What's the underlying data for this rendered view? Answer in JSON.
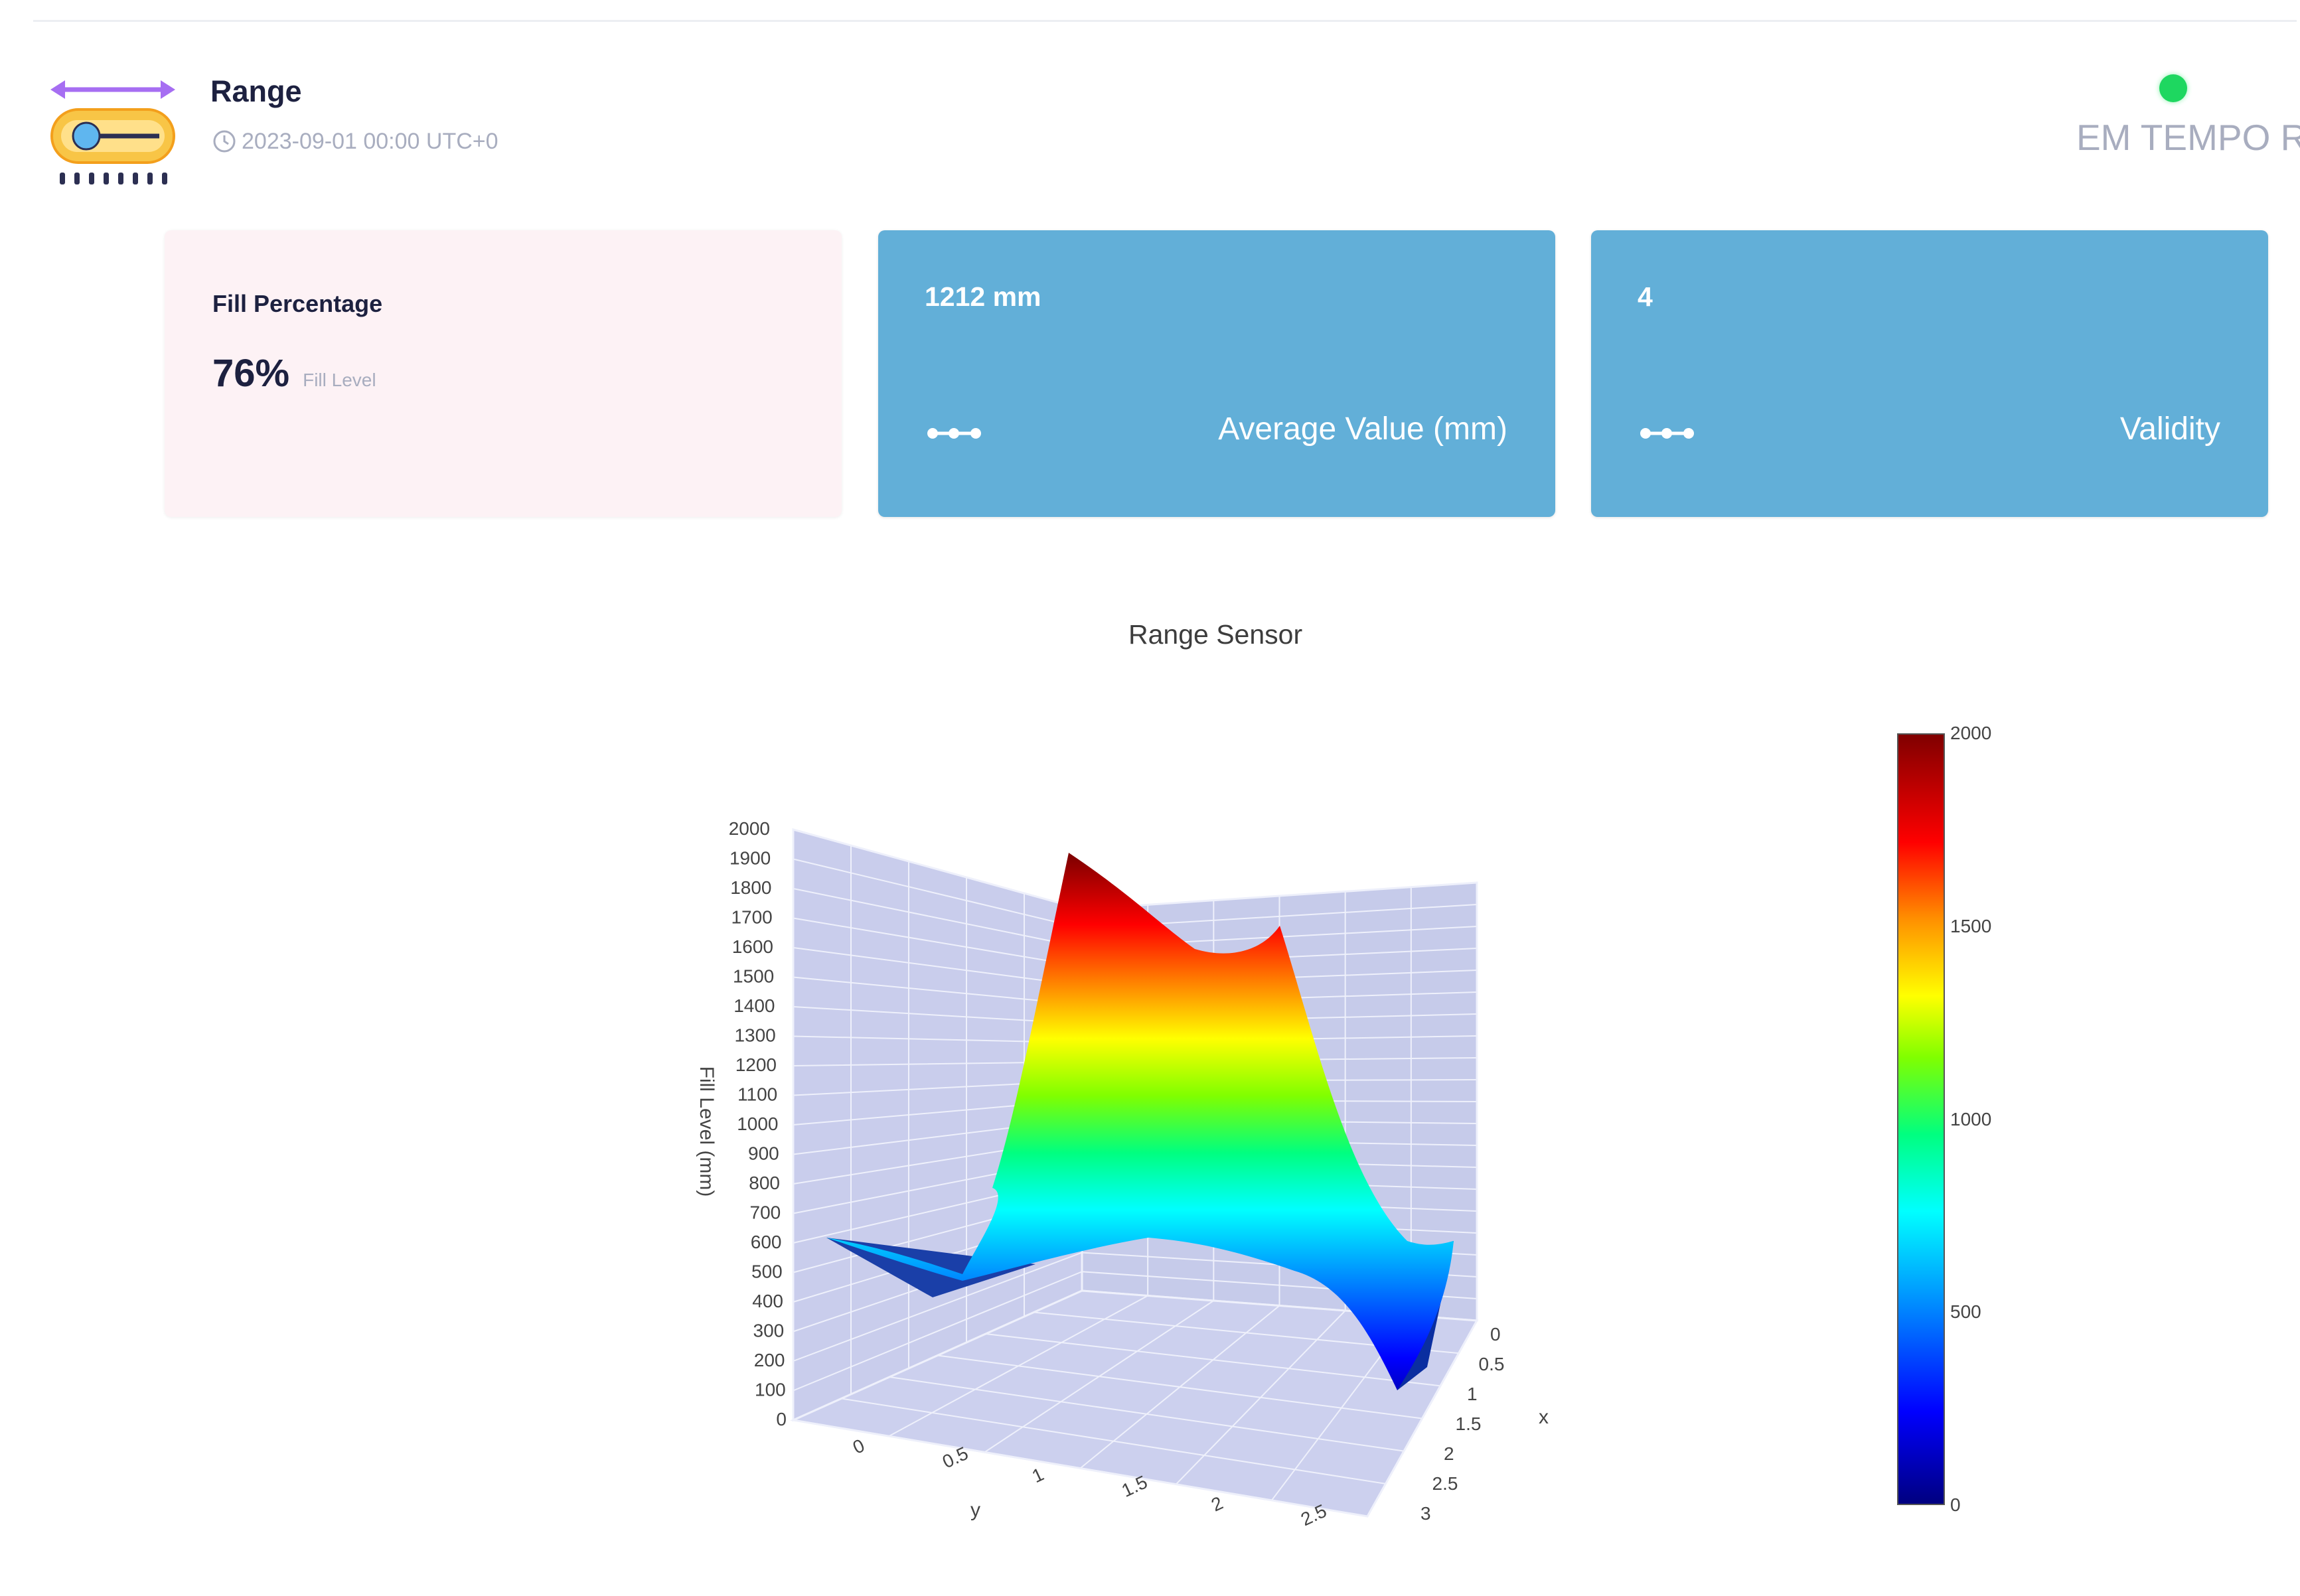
{
  "header": {
    "title": "Range",
    "timestamp": "2023-09-01 00:00 UTC+0",
    "status_text": "EM TEMPO R",
    "status_color": "#1ed760"
  },
  "cards": {
    "fill": {
      "heading": "Fill Percentage",
      "value": "76%",
      "unit": "Fill Level"
    },
    "average": {
      "value": "1212 mm",
      "label": "Average Value (mm)",
      "icon": "sensor-dots-icon"
    },
    "validity": {
      "value": "4",
      "label": "Validity",
      "icon": "sensor-dots-icon"
    }
  },
  "colors": {
    "card_blue": "#62afd8",
    "card_pink": "#fdf2f5",
    "plot_pane": "#c9cdec"
  },
  "chart_data": {
    "type": "surface3d",
    "title": "Range Sensor",
    "zlabel": "Fill Level (mm)",
    "xlabel": "x",
    "ylabel": "y",
    "x_ticks": [
      "0",
      "0.5",
      "1",
      "1.5",
      "2",
      "2.5",
      "3"
    ],
    "y_ticks": [
      "0",
      "0.5",
      "1",
      "1.5",
      "2",
      "2.5"
    ],
    "z_ticks": [
      "0",
      "100",
      "200",
      "300",
      "400",
      "500",
      "600",
      "700",
      "800",
      "900",
      "1000",
      "1100",
      "1200",
      "1300",
      "1400",
      "1500",
      "1600",
      "1700",
      "1800",
      "1900",
      "2000"
    ],
    "zlim": [
      0,
      2000
    ],
    "colorscale": "jet",
    "colorbar": {
      "range": [
        0,
        2000
      ],
      "ticks": [
        "0",
        "500",
        "1000",
        "1500",
        "2000"
      ]
    },
    "surface_peaks_mm": [
      1950,
      1800
    ],
    "surface_corner_mm": [
      580,
      280,
      600,
      100
    ]
  }
}
